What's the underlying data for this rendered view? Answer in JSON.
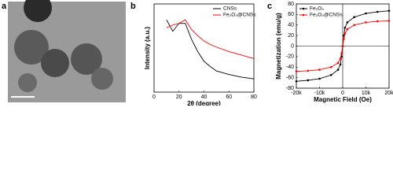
{
  "image_panel": {
    "label": "a"
  },
  "chart_data": [
    {
      "type": "line",
      "panel_label": "b",
      "xlabel": "2θ (degree)",
      "ylabel": "Intensity (a.u.)",
      "x": [
        10,
        15,
        20,
        25,
        30,
        35,
        40,
        45,
        50,
        60,
        70,
        80
      ],
      "series": [
        {
          "name": "CNSs",
          "color": "#000000",
          "values": [
            82,
            69,
            78,
            78,
            60,
            46,
            35,
            29,
            24,
            20,
            17,
            15
          ]
        },
        {
          "name": "Fe₃O₄@CNSs",
          "color": "#ff0000",
          "values": [
            73,
            76,
            78,
            82,
            71,
            64,
            58,
            54,
            51,
            46,
            42,
            38
          ]
        }
      ],
      "xlim": [
        0,
        80
      ],
      "xticks": [
        0,
        20,
        40,
        60,
        80
      ],
      "ylim": [
        0,
        100
      ],
      "legend": "upper right",
      "markers": false
    },
    {
      "type": "line",
      "panel_label": "c",
      "xlabel": "Magnetic Field (Oe)",
      "ylabel": "Magnetization (emu/g)",
      "x": [
        -20000,
        -15000,
        -10000,
        -5000,
        -2000,
        -1000,
        -500,
        0,
        500,
        1000,
        2000,
        5000,
        10000,
        15000,
        20000
      ],
      "series": [
        {
          "name": "Fe₃O₄",
          "color": "#000000",
          "values": [
            -67,
            -65,
            -62,
            -55,
            -45,
            -35,
            -20,
            0,
            20,
            35,
            45,
            55,
            62,
            65,
            67
          ]
        },
        {
          "name": "Fe₃O₄@CNSs",
          "color": "#ff0000",
          "values": [
            -48,
            -47,
            -45,
            -40,
            -32,
            -24,
            -14,
            0,
            14,
            24,
            32,
            40,
            45,
            47,
            48
          ]
        }
      ],
      "xlim": [
        -20000,
        20000
      ],
      "xticks": [
        {
          "value": -20000,
          "label": "-20k"
        },
        {
          "value": -10000,
          "label": "-10k"
        },
        0,
        {
          "value": 10000,
          "label": "10k"
        },
        {
          "value": 20000,
          "label": "20k"
        }
      ],
      "ylim": [
        -80,
        80
      ],
      "yticks": [
        -80,
        -60,
        -40,
        -20,
        0,
        20,
        40,
        60,
        80
      ],
      "legend": "upper left",
      "markers": true
    }
  ]
}
